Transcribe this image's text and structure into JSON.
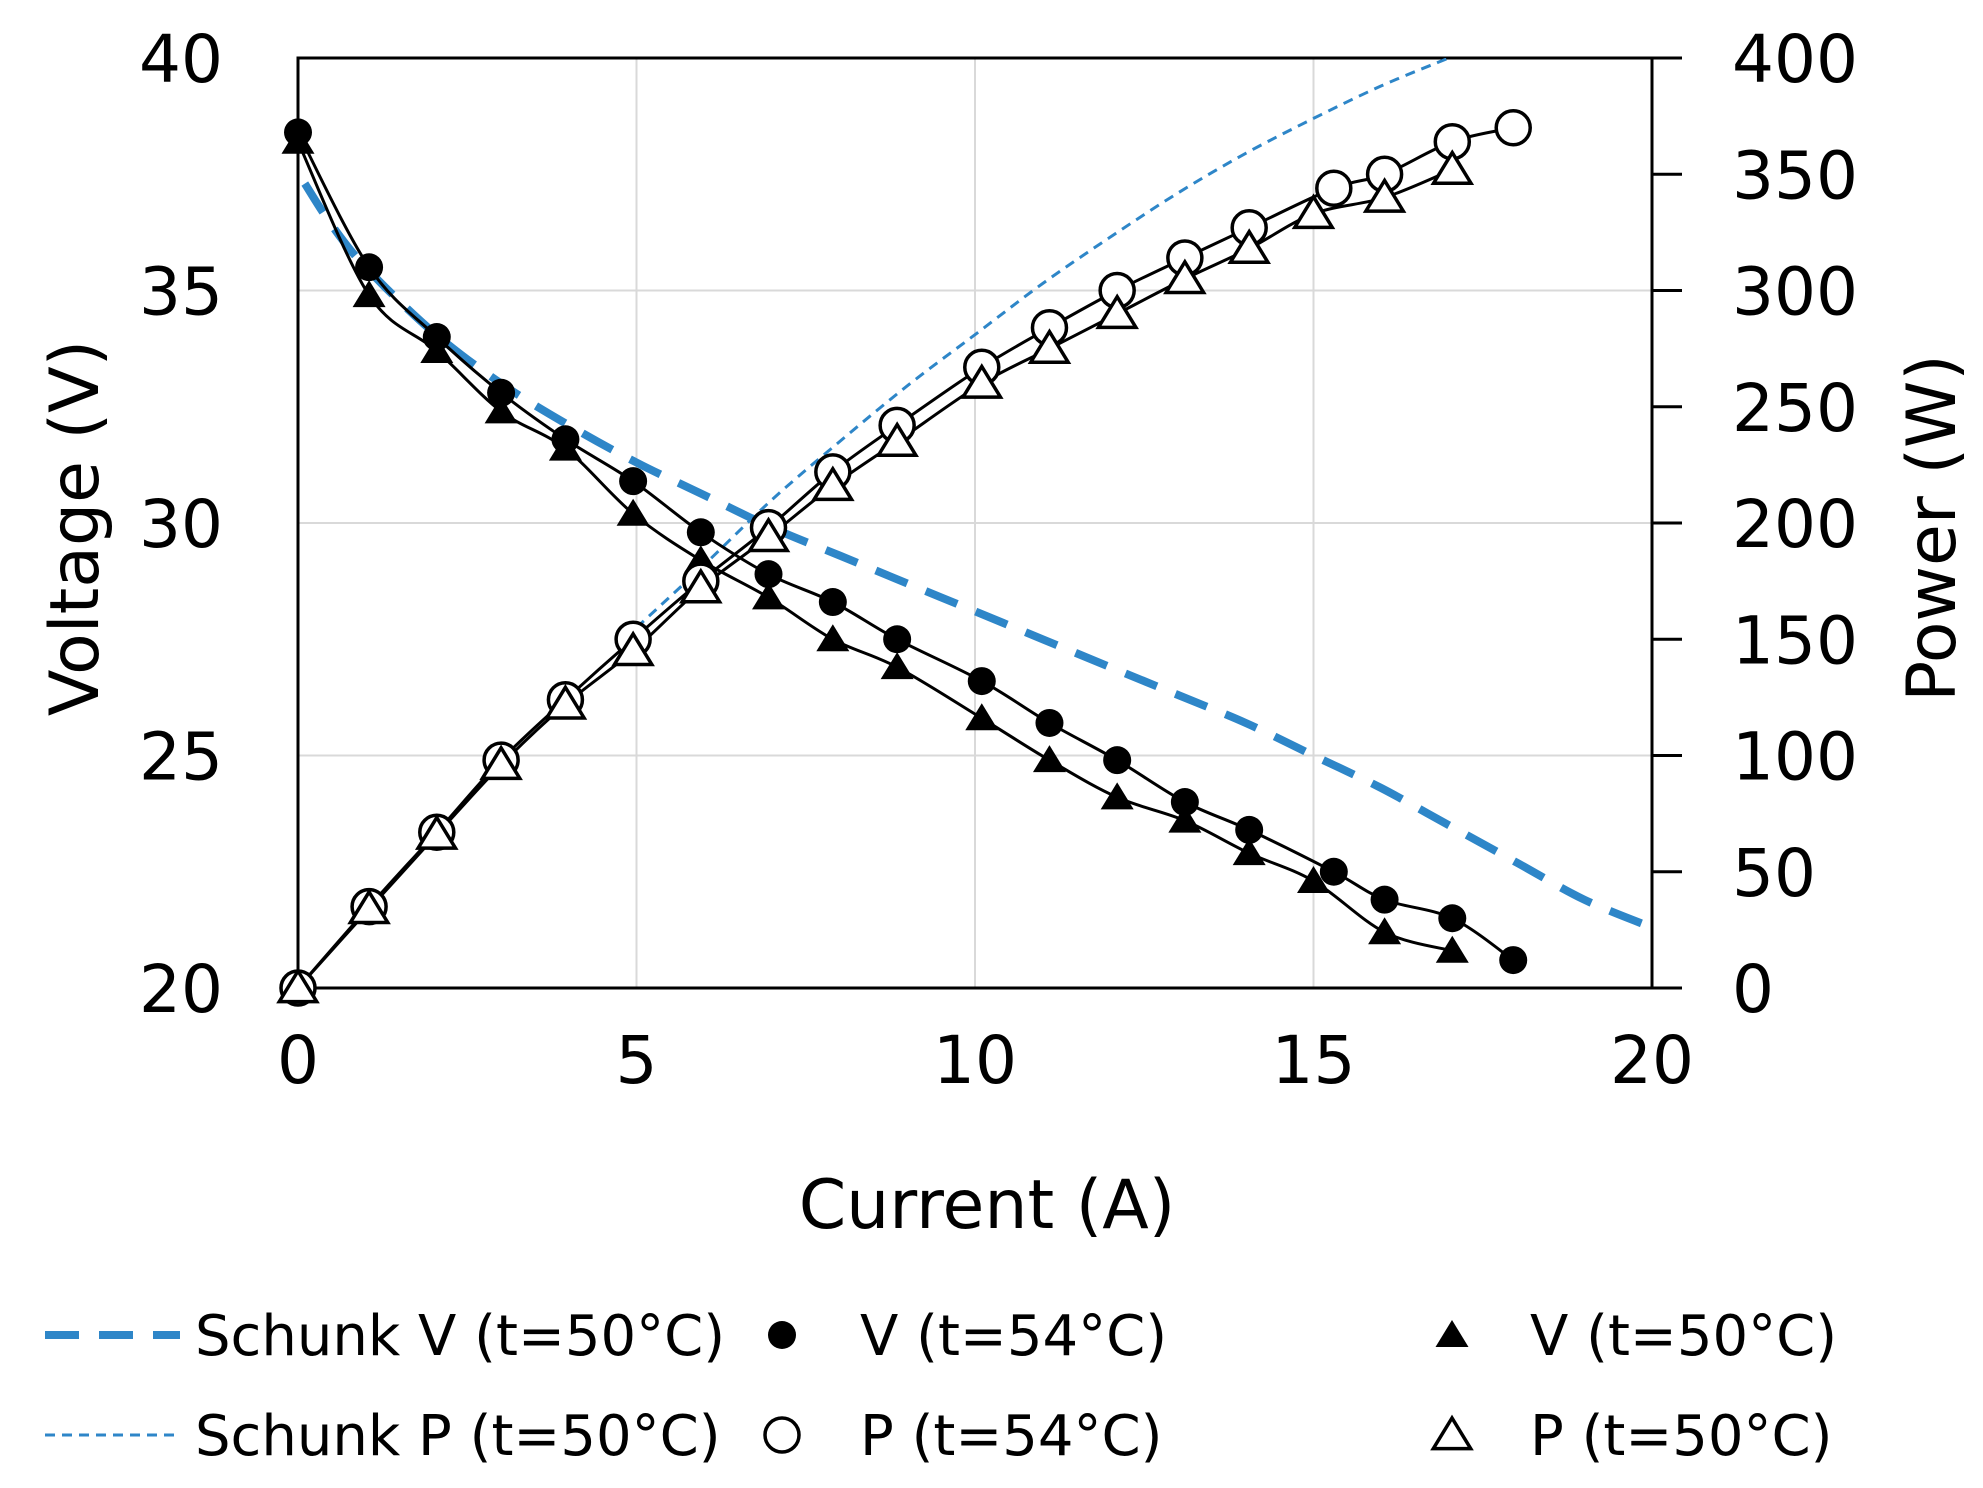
{
  "chart_data": {
    "type": "scatter",
    "xlabel": "Current (A)",
    "ylabel_left": "Voltage (V)",
    "ylabel_right": "Power (W)",
    "xlim": [
      0,
      20
    ],
    "ylim_left": [
      20,
      40
    ],
    "ylim_right": [
      0,
      400
    ],
    "x_ticks": [
      "0",
      "5",
      "10",
      "15",
      "20"
    ],
    "y_left_ticks": [
      "20",
      "25",
      "30",
      "35",
      "40"
    ],
    "y_right_ticks": [
      "0",
      "50",
      "100",
      "150",
      "200",
      "250",
      "300",
      "350",
      "400"
    ],
    "grid": true,
    "legend_position": "bottom",
    "series": [
      {
        "name": "Schunk V (t=50°C)",
        "axis": "left",
        "style": "thick-dashed",
        "color": "#2E86C8",
        "x": [
          0.1,
          0.5,
          1,
          2,
          3,
          4,
          5,
          6,
          7,
          8,
          9,
          10,
          11,
          12,
          13,
          14,
          15,
          16,
          17,
          18,
          19,
          20
        ],
        "y": [
          37.3,
          36.4,
          35.5,
          34.1,
          33.0,
          32.1,
          31.3,
          30.6,
          29.9,
          29.3,
          28.7,
          28.1,
          27.5,
          26.9,
          26.3,
          25.7,
          25.0,
          24.3,
          23.5,
          22.7,
          21.9,
          21.3
        ]
      },
      {
        "name": "Schunk P (t=50°C)",
        "axis": "right",
        "style": "thin-dashed",
        "color": "#2E86C8",
        "x": [
          5,
          6,
          7,
          8,
          9,
          10,
          11,
          12,
          13,
          14,
          15,
          16,
          17
        ],
        "y": [
          155,
          182,
          210,
          235,
          259,
          281,
          303,
          323,
          342,
          359,
          374,
          388,
          400
        ]
      },
      {
        "name": "V (t=54°C)",
        "axis": "left",
        "marker": "filled-circle",
        "color": "#000000",
        "x": [
          0,
          1.05,
          2.05,
          3.0,
          3.95,
          4.95,
          5.95,
          6.95,
          7.9,
          8.85,
          10.1,
          11.1,
          12.1,
          13.1,
          14.05,
          15.3,
          16.05,
          17.05,
          17.95
        ],
        "y": [
          38.4,
          35.5,
          34.0,
          32.8,
          31.8,
          30.9,
          29.8,
          28.9,
          28.3,
          27.5,
          26.6,
          25.7,
          24.9,
          24.0,
          23.4,
          22.5,
          21.9,
          21.5,
          20.6
        ]
      },
      {
        "name": "V (t=50°C)",
        "axis": "left",
        "marker": "filled-triangle",
        "color": "#000000",
        "x": [
          0,
          1.05,
          2.05,
          3.0,
          3.95,
          4.95,
          5.95,
          6.95,
          7.9,
          8.85,
          10.1,
          11.1,
          12.1,
          13.1,
          14.05,
          15.0,
          16.05,
          17.05
        ],
        "y": [
          38.2,
          34.9,
          33.7,
          32.4,
          31.6,
          30.2,
          29.2,
          28.4,
          27.5,
          26.9,
          25.8,
          24.9,
          24.1,
          23.6,
          22.9,
          22.3,
          21.2,
          20.8
        ]
      },
      {
        "name": "P (t=54°C)",
        "axis": "right",
        "marker": "open-circle",
        "color": "#000000",
        "x": [
          0,
          1.05,
          2.05,
          3.0,
          3.95,
          4.95,
          5.95,
          6.95,
          7.9,
          8.85,
          10.1,
          11.1,
          12.1,
          13.1,
          14.05,
          15.3,
          16.05,
          17.05,
          17.95
        ],
        "y": [
          0,
          35,
          67,
          98,
          124,
          150,
          175,
          198,
          222,
          242,
          267,
          284,
          300,
          314,
          327,
          344,
          350,
          364,
          370
        ]
      },
      {
        "name": "P (t=50°C)",
        "axis": "right",
        "marker": "open-triangle",
        "color": "#000000",
        "x": [
          0,
          1.05,
          2.05,
          3.0,
          3.95,
          4.95,
          5.95,
          6.95,
          7.9,
          8.85,
          10.1,
          11.1,
          12.1,
          13.1,
          14.05,
          15.0,
          16.05,
          17.05
        ],
        "y": [
          0,
          34,
          66,
          96,
          122,
          145,
          172,
          194,
          216,
          235,
          260,
          275,
          290,
          305,
          318,
          333,
          340,
          352
        ]
      }
    ]
  }
}
